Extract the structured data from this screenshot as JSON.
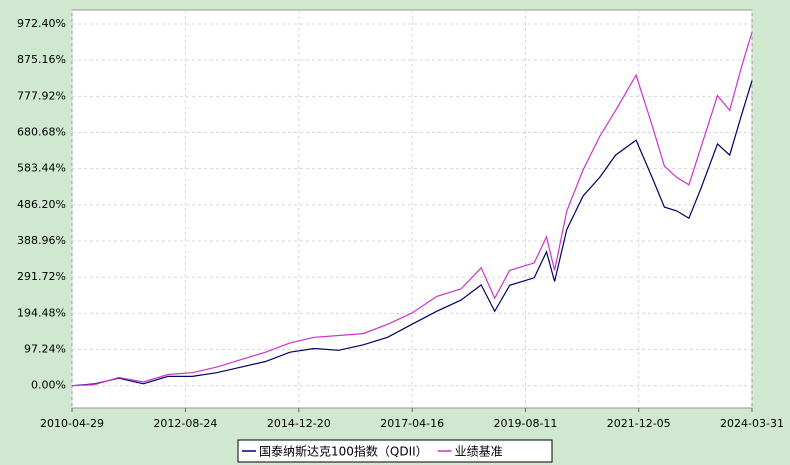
{
  "chart_data": {
    "type": "line",
    "x": [
      "2010-04-29",
      "2010-10-15",
      "2011-04-15",
      "2011-10-14",
      "2012-04-16",
      "2012-10-15",
      "2013-04-15",
      "2013-10-15",
      "2014-04-15",
      "2014-10-15",
      "2015-04-15",
      "2015-10-15",
      "2016-04-15",
      "2016-10-14",
      "2017-04-14",
      "2017-10-16",
      "2018-04-16",
      "2018-09-14",
      "2018-12-24",
      "2019-04-15",
      "2019-10-15",
      "2020-01-15",
      "2020-03-16",
      "2020-06-15",
      "2020-10-15",
      "2021-02-16",
      "2021-06-15",
      "2021-11-15",
      "2022-03-15",
      "2022-06-15",
      "2022-09-15",
      "2022-12-15",
      "2023-03-15",
      "2023-07-17",
      "2023-10-16",
      "2024-01-15",
      "2024-03-31"
    ],
    "series": [
      {
        "name": "国泰纳斯达克100指数（QDII）",
        "color": "#000066",
        "values": [
          0,
          5,
          20,
          5,
          25,
          25,
          35,
          50,
          65,
          90,
          100,
          95,
          110,
          130,
          165,
          200,
          230,
          271,
          200,
          270,
          290,
          360,
          280,
          420,
          510,
          560,
          620,
          660,
          560,
          480,
          470,
          450,
          530,
          650,
          620,
          730,
          820
        ]
      },
      {
        "name": "业绩基准",
        "color": "#cc33cc",
        "values": [
          0,
          3,
          22,
          10,
          30,
          35,
          50,
          70,
          90,
          115,
          130,
          135,
          140,
          165,
          195,
          240,
          260,
          317,
          235,
          310,
          330,
          400,
          310,
          470,
          580,
          670,
          740,
          835,
          700,
          590,
          560,
          540,
          640,
          780,
          740,
          860,
          950
        ]
      }
    ],
    "xlim": [
      "2010-04-29",
      "2024-03-31"
    ],
    "xticks": [
      "2010-04-29",
      "2012-08-24",
      "2014-12-20",
      "2017-04-16",
      "2019-08-11",
      "2021-12-05",
      "2024-03-31"
    ],
    "ylim": [
      -60,
      1010
    ],
    "yticks": [
      {
        "value": 0,
        "label": "0.00%"
      },
      {
        "value": 97.24,
        "label": "97.24%"
      },
      {
        "value": 194.48,
        "label": "194.48%"
      },
      {
        "value": 291.72,
        "label": "291.72%"
      },
      {
        "value": 388.96,
        "label": "388.96%"
      },
      {
        "value": 486.2,
        "label": "486.20%"
      },
      {
        "value": 583.44,
        "label": "583.44%"
      },
      {
        "value": 680.68,
        "label": "680.68%"
      },
      {
        "value": 777.92,
        "label": "777.92%"
      },
      {
        "value": 875.16,
        "label": "875.16%"
      },
      {
        "value": 972.4,
        "label": "972.40%"
      }
    ],
    "grid": true
  }
}
